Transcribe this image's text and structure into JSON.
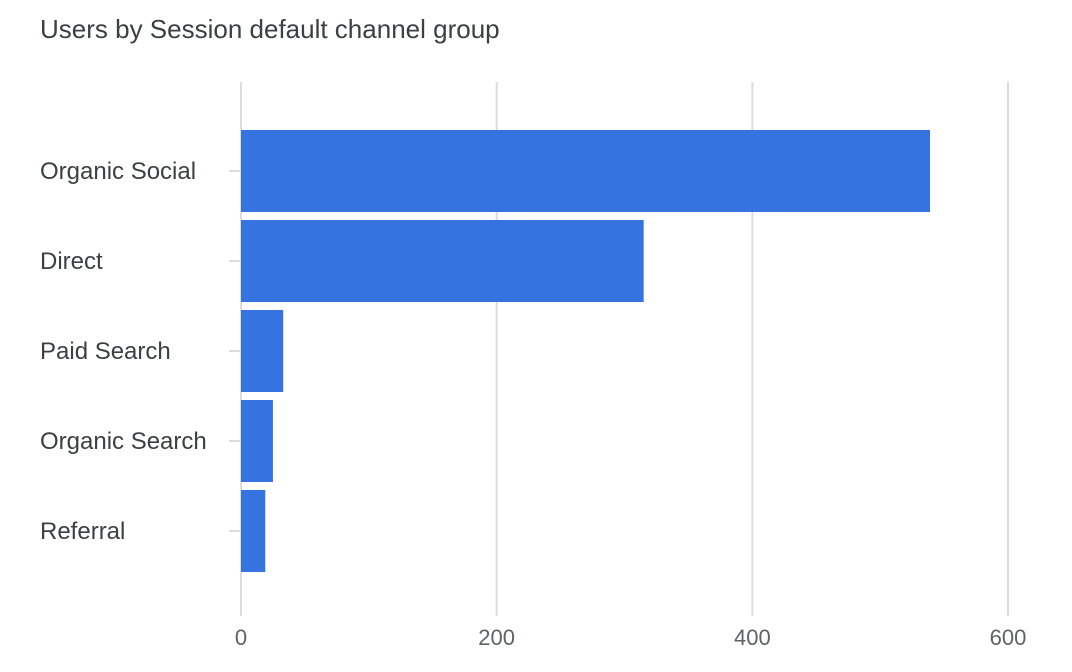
{
  "chart_data": {
    "type": "bar",
    "orientation": "horizontal",
    "title": "Users by Session default channel group",
    "categories": [
      "Organic Social",
      "Direct",
      "Paid Search",
      "Organic Search",
      "Referral"
    ],
    "values": [
      539,
      315,
      33,
      25,
      19
    ],
    "xlim": [
      0,
      600
    ],
    "x_ticks": [
      0,
      200,
      400,
      600
    ],
    "grid": true,
    "legend": "none",
    "bar_color": "#3574e0",
    "grid_color": "#dadce0"
  }
}
